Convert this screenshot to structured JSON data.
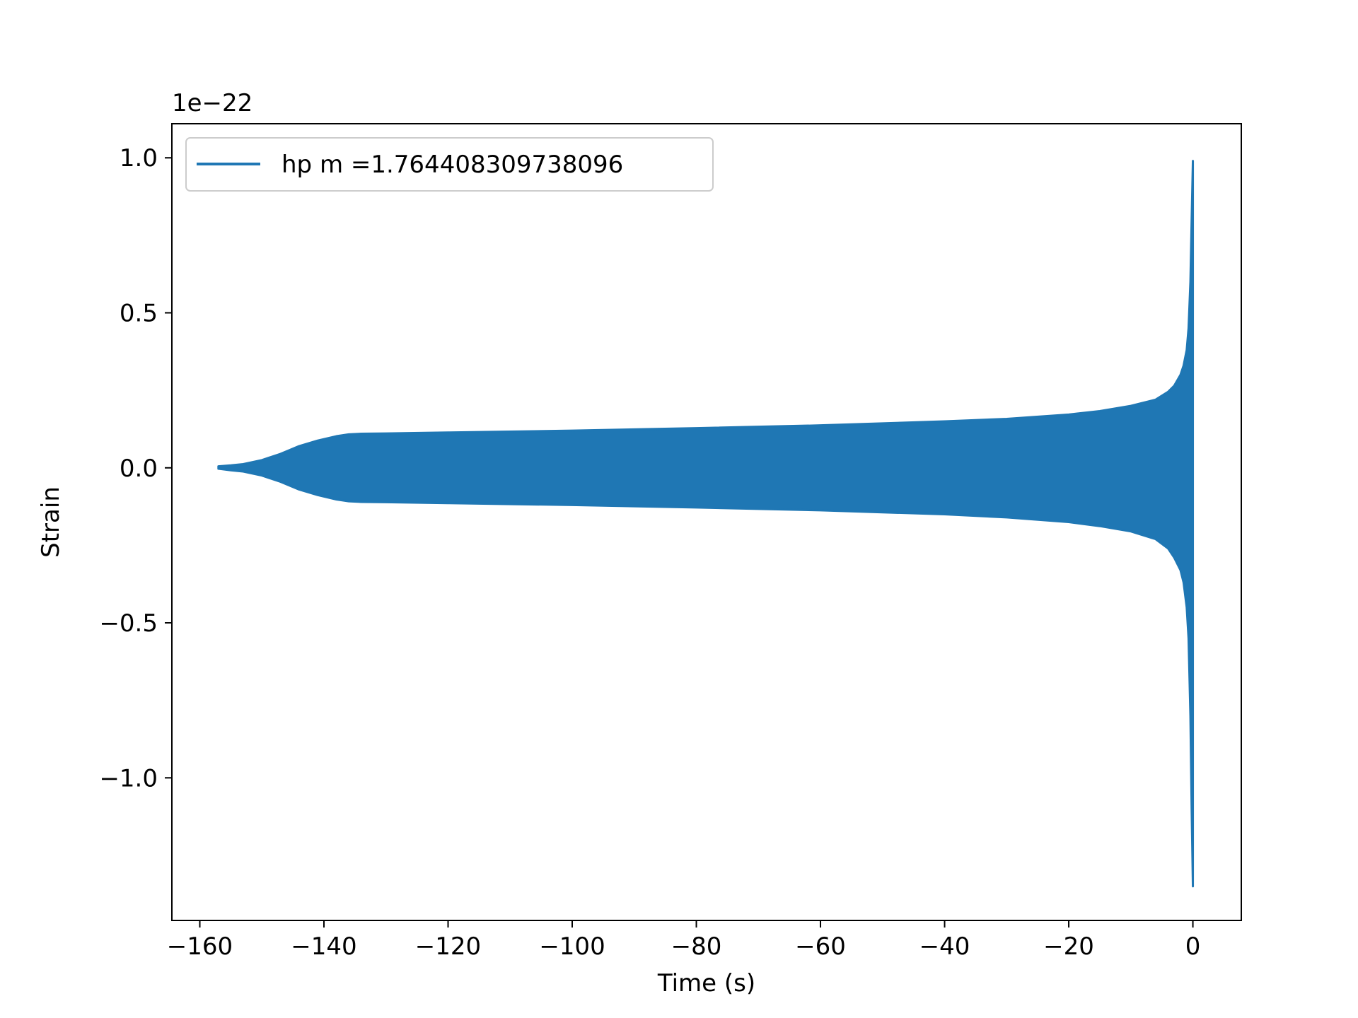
{
  "chart_data": {
    "type": "line",
    "title": "",
    "xlabel": "Time (s)",
    "ylabel": "Strain",
    "offset_text": "1e−22",
    "xlim": [
      -164.5,
      7.8
    ],
    "ylim": [
      -1.46,
      1.11
    ],
    "xticks": [
      -160,
      -140,
      -120,
      -100,
      -80,
      -60,
      -40,
      -20,
      0
    ],
    "xtick_labels": [
      "−160",
      "−140",
      "−120",
      "−100",
      "−80",
      "−60",
      "−40",
      "−20",
      "0"
    ],
    "yticks": [
      1.0,
      0.5,
      0.0,
      -0.5,
      -1.0
    ],
    "ytick_labels": [
      "1.0",
      "0.5",
      "0.0",
      "−0.5",
      "−1.0"
    ],
    "grid": false,
    "legend_position": "top-left",
    "series": [
      {
        "name": "hp m =1.764408309738096",
        "color": "#1f77b4",
        "envelope": {
          "t": [
            -157,
            -155,
            -153,
            -150,
            -147,
            -144,
            -141,
            -138,
            -136,
            -134,
            -130,
            -120,
            -100,
            -80,
            -60,
            -40,
            -30,
            -20,
            -15,
            -10,
            -6,
            -4,
            -3,
            -2,
            -1.5,
            -1,
            -0.7,
            -0.4,
            -0.2,
            0
          ],
          "upper": [
            0.005,
            0.008,
            0.012,
            0.025,
            0.045,
            0.07,
            0.088,
            0.102,
            0.108,
            0.11,
            0.111,
            0.114,
            0.12,
            0.128,
            0.137,
            0.15,
            0.158,
            0.172,
            0.183,
            0.2,
            0.22,
            0.245,
            0.265,
            0.3,
            0.33,
            0.38,
            0.45,
            0.6,
            0.8,
            0.99
          ],
          "lower": [
            -0.003,
            -0.008,
            -0.012,
            -0.025,
            -0.045,
            -0.07,
            -0.088,
            -0.102,
            -0.108,
            -0.11,
            -0.111,
            -0.114,
            -0.12,
            -0.128,
            -0.137,
            -0.15,
            -0.16,
            -0.175,
            -0.188,
            -0.205,
            -0.23,
            -0.26,
            -0.29,
            -0.33,
            -0.37,
            -0.45,
            -0.55,
            -0.8,
            -1.1,
            -1.35
          ]
        }
      }
    ]
  }
}
